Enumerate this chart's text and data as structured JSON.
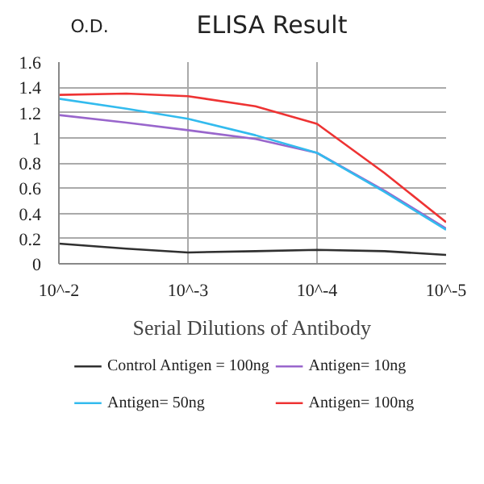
{
  "chart_data": {
    "type": "line",
    "title": "ELISA Result",
    "ylabel": "O.D.",
    "xlabel": "Serial Dilutions of Antibody",
    "x": [
      0.01,
      0.003,
      0.001,
      0.0003,
      0.0001,
      3e-05,
      1e-05
    ],
    "log": "x",
    "xlim": [
      0.01,
      1e-05
    ],
    "xticks": [
      {
        "value": 0.01,
        "label": "10^-2"
      },
      {
        "value": 0.001,
        "label": "10^-3"
      },
      {
        "value": 0.0001,
        "label": "10^-4"
      },
      {
        "value": 1e-05,
        "label": "10^-5"
      }
    ],
    "ylim": [
      0,
      1.6
    ],
    "yticks": [
      0,
      0.2,
      0.4,
      0.6,
      0.8,
      1,
      1.2,
      1.4,
      1.6
    ],
    "grid": true,
    "legend": "bottom",
    "marker": "none",
    "line_style": "solid",
    "series": [
      {
        "name": "Control Antigen = 100ng",
        "color": "#303030",
        "values": [
          0.16,
          0.12,
          0.09,
          0.1,
          0.11,
          0.1,
          0.07
        ]
      },
      {
        "name": "Antigen= 10ng",
        "color": "#9966cc",
        "values": [
          1.18,
          1.12,
          1.06,
          0.99,
          0.88,
          0.58,
          0.28
        ]
      },
      {
        "name": "Antigen= 50ng",
        "color": "#33bbee",
        "values": [
          1.31,
          1.23,
          1.15,
          1.02,
          0.88,
          0.57,
          0.27
        ]
      },
      {
        "name": "Antigen= 100ng",
        "color": "#ee3333",
        "values": [
          1.34,
          1.35,
          1.33,
          1.25,
          1.11,
          0.72,
          0.33
        ]
      }
    ]
  }
}
